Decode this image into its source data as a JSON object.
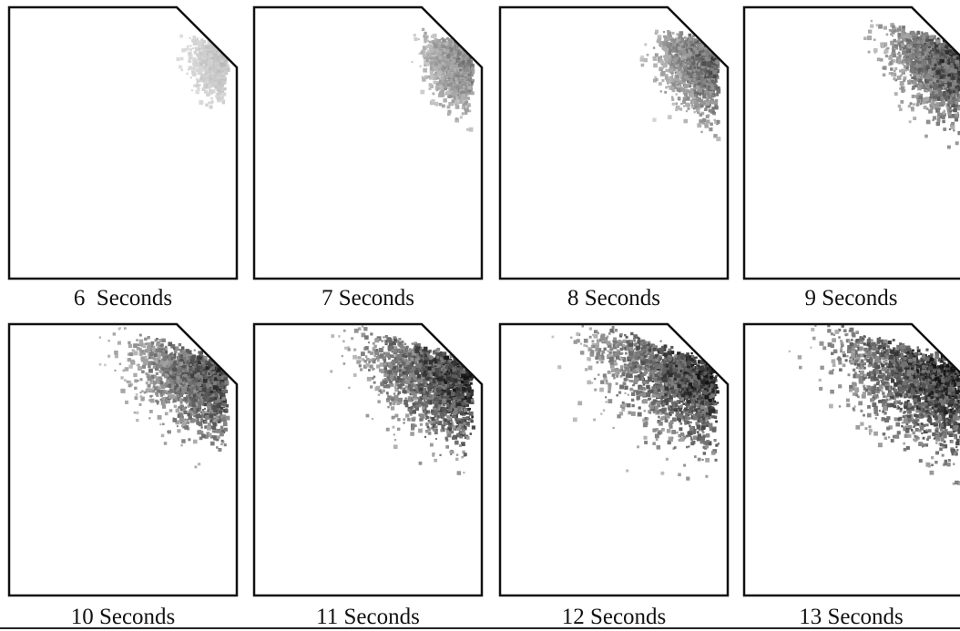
{
  "figure": {
    "panels": [
      {
        "caption": "6  Seconds"
      },
      {
        "caption": "7 Seconds"
      },
      {
        "caption": "8 Seconds"
      },
      {
        "caption": "9 Seconds"
      },
      {
        "caption": "10 Seconds"
      },
      {
        "caption": "11 Seconds"
      },
      {
        "caption": "12 Seconds"
      },
      {
        "caption": "13 Seconds"
      }
    ]
  }
}
